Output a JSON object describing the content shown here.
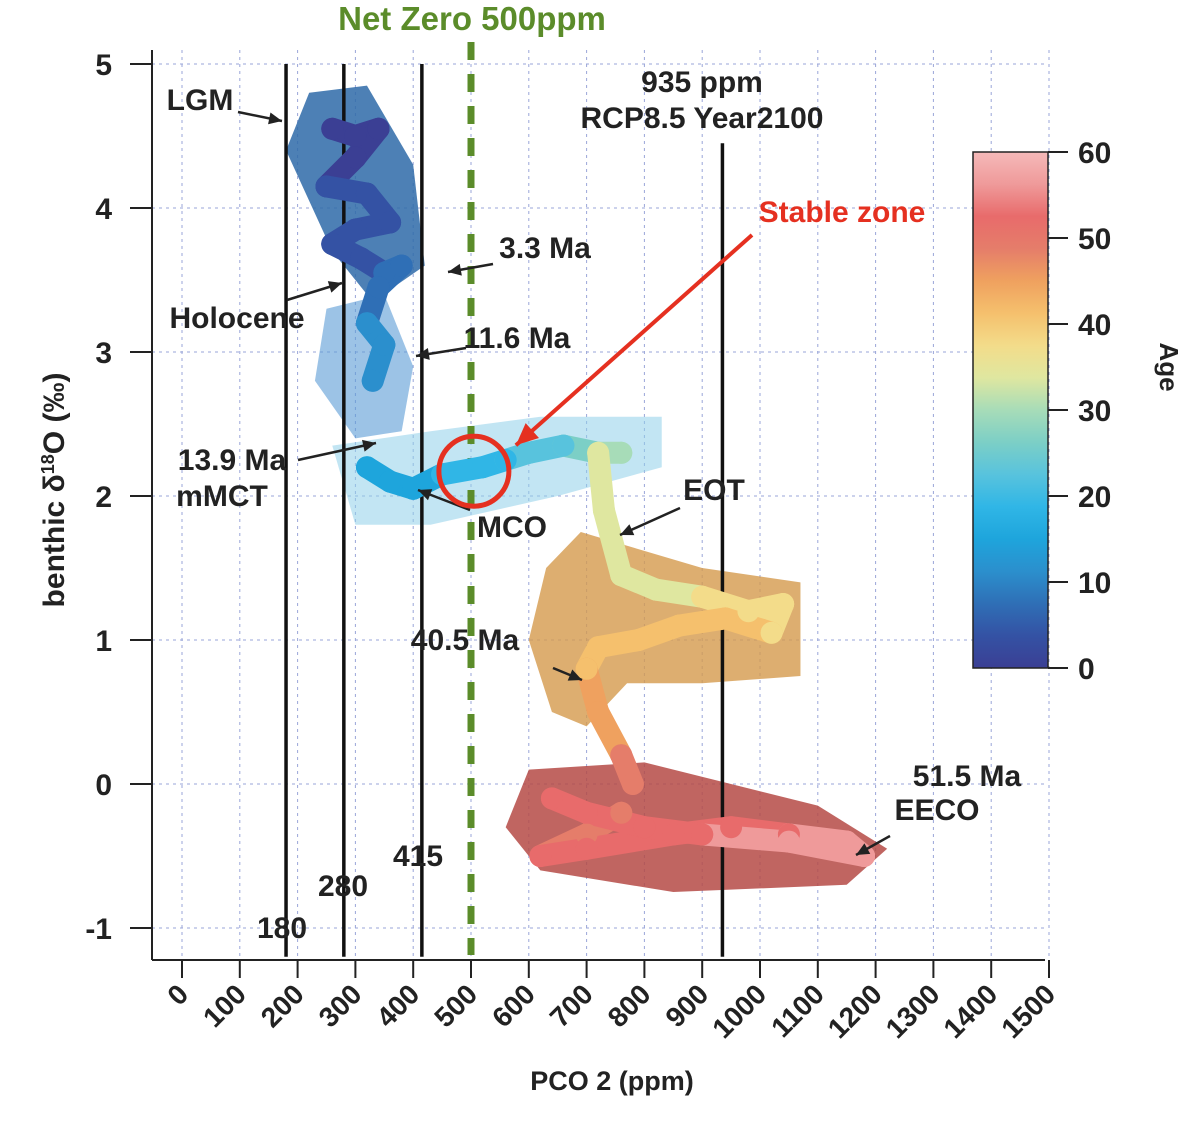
{
  "chart_data": {
    "type": "scatter",
    "title": "Net Zero 500ppm",
    "xlabel": "PCO 2 (ppm)",
    "ylabel": "benthic δ18O (‰)",
    "xlim": [
      -50,
      1510
    ],
    "ylim": [
      -1.2,
      5
    ],
    "x_ticks": [
      0,
      100,
      200,
      300,
      400,
      500,
      600,
      700,
      800,
      900,
      1000,
      1100,
      1200,
      1300,
      1400,
      1500
    ],
    "y_ticks": [
      -1,
      0,
      1,
      2,
      3,
      4,
      5
    ],
    "grid": "dashed",
    "reference_lines": [
      {
        "x": 180,
        "label": "180"
      },
      {
        "x": 280,
        "label": "280"
      },
      {
        "x": 415,
        "label": "415"
      },
      {
        "x": 935,
        "label": "935 ppm\nRCP8.5 Year2100"
      },
      {
        "x": 500,
        "label": "Net Zero 500ppm",
        "style": "dashed",
        "color": "#5b8c2a"
      }
    ],
    "colorbar": {
      "label": "Age",
      "ticks": [
        0,
        10,
        20,
        30,
        40,
        50,
        60
      ],
      "range": [
        0,
        60
      ],
      "colors": [
        "#3b3f94",
        "#3452a4",
        "#2f6fb6",
        "#2b8fcd",
        "#1ea5dc",
        "#30b6e6",
        "#58c3dd",
        "#7ccfc6",
        "#a7dcb8",
        "#dfe7a0",
        "#f3dc8a",
        "#f5c06d",
        "#efa15f",
        "#e57d6a",
        "#e86b6b",
        "#ef9a9a",
        "#f5b9b9"
      ]
    },
    "series": [
      {
        "x": [
          260,
          300,
          340,
          300,
          250,
          320,
          360,
          300,
          260,
          310,
          350,
          380,
          340,
          320,
          350,
          330
        ],
        "y": [
          4.55,
          4.5,
          4.55,
          4.35,
          4.15,
          4.1,
          3.9,
          3.85,
          3.75,
          3.65,
          3.55,
          3.6,
          3.45,
          3.2,
          3.05,
          2.8
        ],
        "age": [
          0,
          0.5,
          1,
          1.5,
          2,
          2.5,
          3,
          3.3,
          4,
          5,
          6,
          7,
          8,
          10,
          11.6,
          12
        ]
      },
      {
        "x": [
          320,
          360,
          400,
          450,
          520,
          560,
          600,
          660,
          720,
          760
        ],
        "y": [
          2.2,
          2.1,
          2.05,
          2.15,
          2.2,
          2.25,
          2.3,
          2.35,
          2.3,
          2.3
        ],
        "age": [
          13.9,
          15,
          16,
          17,
          18,
          20,
          22,
          24,
          27,
          30
        ]
      },
      {
        "x": [
          720,
          730,
          760,
          820,
          900,
          980,
          1040,
          1020,
          940,
          860,
          790,
          720,
          700,
          720,
          760,
          780
        ],
        "y": [
          2.3,
          1.9,
          1.45,
          1.35,
          1.3,
          1.2,
          1.25,
          1.05,
          1.15,
          1.1,
          1.0,
          0.95,
          0.8,
          0.5,
          0.2,
          0.0
        ],
        "age": [
          32,
          33.5,
          34,
          35,
          36,
          37,
          38,
          39,
          40,
          40.5,
          41,
          42,
          43,
          45,
          47,
          48
        ]
      },
      {
        "x": [
          760,
          700,
          620,
          700,
          850,
          950,
          1050,
          1150,
          1180,
          1050,
          900,
          800,
          700,
          640
        ],
        "y": [
          -0.2,
          -0.35,
          -0.5,
          -0.45,
          -0.35,
          -0.3,
          -0.35,
          -0.4,
          -0.5,
          -0.4,
          -0.35,
          -0.3,
          -0.2,
          -0.1
        ],
        "age": [
          49,
          50,
          51,
          51.5,
          52,
          53,
          54,
          55,
          56,
          55,
          54,
          53,
          52,
          51
        ]
      }
    ],
    "annotations": [
      "LGM",
      "Holocene",
      "3.3 Ma",
      "11.6 Ma",
      "13.9 Ma",
      "mMCT",
      "MCO",
      "EOT",
      "40.5 Ma",
      "51.5 Ma",
      "EECO",
      "Stable zone"
    ],
    "highlight": {
      "label": "Stable zone",
      "color": "#e53020",
      "x": 505,
      "y": 2.2
    }
  }
}
